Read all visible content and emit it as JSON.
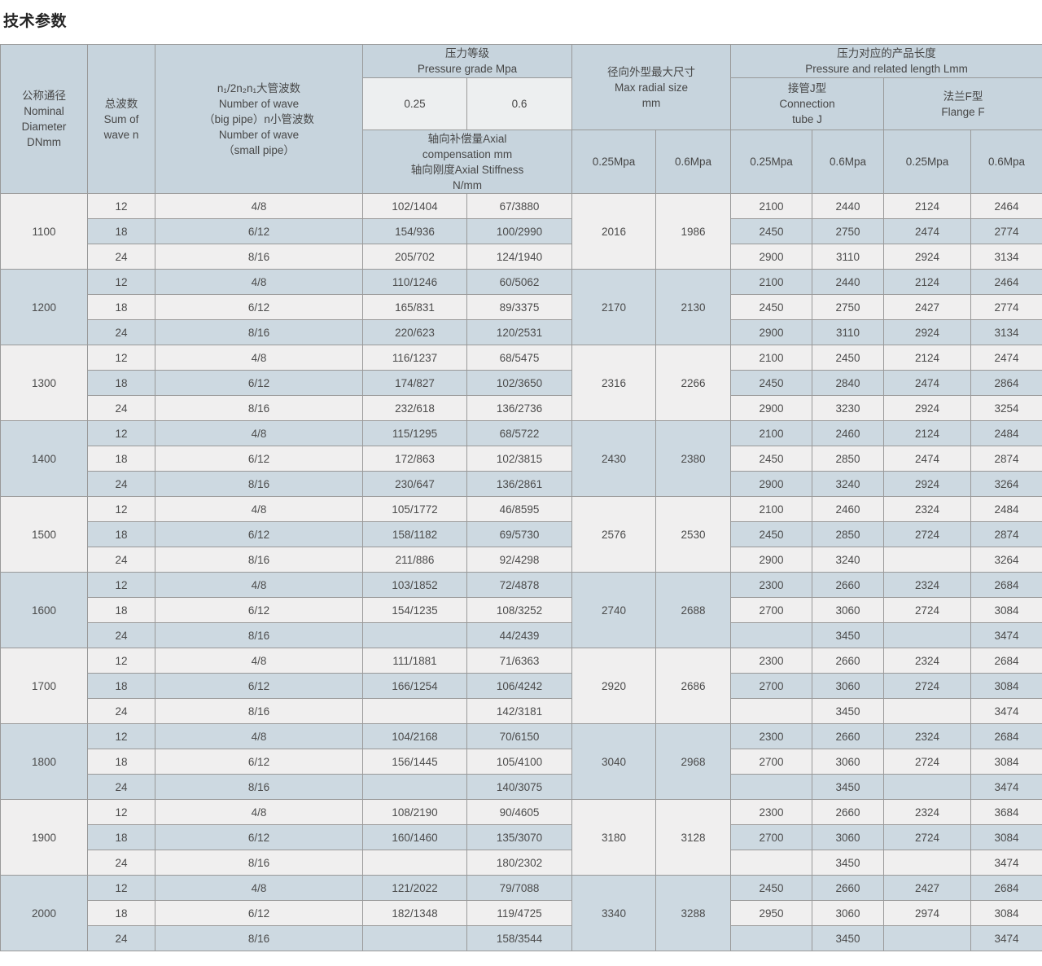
{
  "title": "技术参数",
  "colors": {
    "header_bg": "#c7d4dd",
    "header_sub_light_bg": "#edeff0",
    "row_light_bg": "#f0efef",
    "row_blue_bg": "#cdd9e1",
    "border": "#999999",
    "text": "#4c4c4c"
  },
  "table": {
    "header": {
      "nominal_diameter": "公称通径\nNominal\nDiameter\nDNmm",
      "wave_sum": "总波数\nSum of\nwave n",
      "wave_number": "n₁/2n₂n₁大管波数\nNumber of wave\n（big pipe）n小管波数\nNumber of wave\n（small pipe）",
      "pressure_grade": "压力等级\nPressure grade Mpa",
      "pressure_025": "0.25",
      "pressure_06": "0.6",
      "axial": "轴向补偿量Axial\ncompensation mm\n轴向刚度Axial Stiffness\nN/mm",
      "max_radial": "径向外型最大尺寸\nMax radial size\nmm",
      "pressure_length": "压力对应的产品长度\nPressure and related length Lmm",
      "tube_j": "接管J型\nConnection\ntube J",
      "flange_f": "法兰F型\nFlange F",
      "mpa_sub": [
        "0.25Mpa",
        "0.6Mpa",
        "0.25Mpa",
        "0.6Mpa",
        "0.25Mpa",
        "0.6Mpa"
      ]
    },
    "groups": [
      {
        "dn": "1100",
        "radial_025": "2016",
        "radial_06": "1986",
        "rows": [
          {
            "n": "12",
            "wave": "4/8",
            "axial_025": "102/1404",
            "axial_06": "67/3880",
            "j_025": "2100",
            "j_06": "2440",
            "f_025": "2124",
            "f_06": "2464"
          },
          {
            "n": "18",
            "wave": "6/12",
            "axial_025": "154/936",
            "axial_06": "100/2990",
            "j_025": "2450",
            "j_06": "2750",
            "f_025": "2474",
            "f_06": "2774"
          },
          {
            "n": "24",
            "wave": "8/16",
            "axial_025": "205/702",
            "axial_06": "124/1940",
            "j_025": "2900",
            "j_06": "3110",
            "f_025": "2924",
            "f_06": "3134"
          }
        ]
      },
      {
        "dn": "1200",
        "radial_025": "2170",
        "radial_06": "2130",
        "rows": [
          {
            "n": "12",
            "wave": "4/8",
            "axial_025": "110/1246",
            "axial_06": "60/5062",
            "j_025": "2100",
            "j_06": "2440",
            "f_025": "2124",
            "f_06": "2464"
          },
          {
            "n": "18",
            "wave": "6/12",
            "axial_025": "165/831",
            "axial_06": "89/3375",
            "j_025": "2450",
            "j_06": "2750",
            "f_025": "2427",
            "f_06": "2774"
          },
          {
            "n": "24",
            "wave": "8/16",
            "axial_025": "220/623",
            "axial_06": "120/2531",
            "j_025": "2900",
            "j_06": "3110",
            "f_025": "2924",
            "f_06": "3134"
          }
        ]
      },
      {
        "dn": "1300",
        "radial_025": "2316",
        "radial_06": "2266",
        "rows": [
          {
            "n": "12",
            "wave": "4/8",
            "axial_025": "116/1237",
            "axial_06": "68/5475",
            "j_025": "2100",
            "j_06": "2450",
            "f_025": "2124",
            "f_06": "2474"
          },
          {
            "n": "18",
            "wave": "6/12",
            "axial_025": "174/827",
            "axial_06": "102/3650",
            "j_025": "2450",
            "j_06": "2840",
            "f_025": "2474",
            "f_06": "2864"
          },
          {
            "n": "24",
            "wave": "8/16",
            "axial_025": "232/618",
            "axial_06": "136/2736",
            "j_025": "2900",
            "j_06": "3230",
            "f_025": "2924",
            "f_06": "3254"
          }
        ]
      },
      {
        "dn": "1400",
        "radial_025": "2430",
        "radial_06": "2380",
        "rows": [
          {
            "n": "12",
            "wave": "4/8",
            "axial_025": "115/1295",
            "axial_06": "68/5722",
            "j_025": "2100",
            "j_06": "2460",
            "f_025": "2124",
            "f_06": "2484"
          },
          {
            "n": "18",
            "wave": "6/12",
            "axial_025": "172/863",
            "axial_06": "102/3815",
            "j_025": "2450",
            "j_06": "2850",
            "f_025": "2474",
            "f_06": "2874"
          },
          {
            "n": "24",
            "wave": "8/16",
            "axial_025": "230/647",
            "axial_06": "136/2861",
            "j_025": "2900",
            "j_06": "3240",
            "f_025": "2924",
            "f_06": "3264"
          }
        ]
      },
      {
        "dn": "1500",
        "radial_025": "2576",
        "radial_06": "2530",
        "rows": [
          {
            "n": "12",
            "wave": "4/8",
            "axial_025": "105/1772",
            "axial_06": "46/8595",
            "j_025": "2100",
            "j_06": "2460",
            "f_025": "2324",
            "f_06": "2484"
          },
          {
            "n": "18",
            "wave": "6/12",
            "axial_025": "158/1182",
            "axial_06": "69/5730",
            "j_025": "2450",
            "j_06": "2850",
            "f_025": "2724",
            "f_06": "2874"
          },
          {
            "n": "24",
            "wave": "8/16",
            "axial_025": "211/886",
            "axial_06": "92/4298",
            "j_025": "2900",
            "j_06": "3240",
            "f_025": "",
            "f_06": "3264"
          }
        ]
      },
      {
        "dn": "1600",
        "radial_025": "2740",
        "radial_06": "2688",
        "rows": [
          {
            "n": "12",
            "wave": "4/8",
            "axial_025": "103/1852",
            "axial_06": "72/4878",
            "j_025": "2300",
            "j_06": "2660",
            "f_025": "2324",
            "f_06": "2684"
          },
          {
            "n": "18",
            "wave": "6/12",
            "axial_025": "154/1235",
            "axial_06": "108/3252",
            "j_025": "2700",
            "j_06": "3060",
            "f_025": "2724",
            "f_06": "3084"
          },
          {
            "n": "24",
            "wave": "8/16",
            "axial_025": "",
            "axial_06": "44/2439",
            "j_025": "",
            "j_06": "3450",
            "f_025": "",
            "f_06": "3474"
          }
        ]
      },
      {
        "dn": "1700",
        "radial_025": "2920",
        "radial_06": "2686",
        "rows": [
          {
            "n": "12",
            "wave": "4/8",
            "axial_025": "111/1881",
            "axial_06": "71/6363",
            "j_025": "2300",
            "j_06": "2660",
            "f_025": "2324",
            "f_06": "2684"
          },
          {
            "n": "18",
            "wave": "6/12",
            "axial_025": "166/1254",
            "axial_06": "106/4242",
            "j_025": "2700",
            "j_06": "3060",
            "f_025": "2724",
            "f_06": "3084"
          },
          {
            "n": "24",
            "wave": "8/16",
            "axial_025": "",
            "axial_06": "142/3181",
            "j_025": "",
            "j_06": "3450",
            "f_025": "",
            "f_06": "3474"
          }
        ]
      },
      {
        "dn": "1800",
        "radial_025": "3040",
        "radial_06": "2968",
        "rows": [
          {
            "n": "12",
            "wave": "4/8",
            "axial_025": "104/2168",
            "axial_06": "70/6150",
            "j_025": "2300",
            "j_06": "2660",
            "f_025": "2324",
            "f_06": "2684"
          },
          {
            "n": "18",
            "wave": "6/12",
            "axial_025": "156/1445",
            "axial_06": "105/4100",
            "j_025": "2700",
            "j_06": "3060",
            "f_025": "2724",
            "f_06": "3084"
          },
          {
            "n": "24",
            "wave": "8/16",
            "axial_025": "",
            "axial_06": "140/3075",
            "j_025": "",
            "j_06": "3450",
            "f_025": "",
            "f_06": "3474"
          }
        ]
      },
      {
        "dn": "1900",
        "radial_025": "3180",
        "radial_06": "3128",
        "rows": [
          {
            "n": "12",
            "wave": "4/8",
            "axial_025": "108/2190",
            "axial_06": "90/4605",
            "j_025": "2300",
            "j_06": "2660",
            "f_025": "2324",
            "f_06": "3684"
          },
          {
            "n": "18",
            "wave": "6/12",
            "axial_025": "160/1460",
            "axial_06": "135/3070",
            "j_025": "2700",
            "j_06": "3060",
            "f_025": "2724",
            "f_06": "3084"
          },
          {
            "n": "24",
            "wave": "8/16",
            "axial_025": "",
            "axial_06": "180/2302",
            "j_025": "",
            "j_06": "3450",
            "f_025": "",
            "f_06": "3474"
          }
        ]
      },
      {
        "dn": "2000",
        "radial_025": "3340",
        "radial_06": "3288",
        "rows": [
          {
            "n": "12",
            "wave": "4/8",
            "axial_025": "121/2022",
            "axial_06": "79/7088",
            "j_025": "2450",
            "j_06": "2660",
            "f_025": "2427",
            "f_06": "2684"
          },
          {
            "n": "18",
            "wave": "6/12",
            "axial_025": "182/1348",
            "axial_06": "119/4725",
            "j_025": "2950",
            "j_06": "3060",
            "f_025": "2974",
            "f_06": "3084"
          },
          {
            "n": "24",
            "wave": "8/16",
            "axial_025": "",
            "axial_06": "158/3544",
            "j_025": "",
            "j_06": "3450",
            "f_025": "",
            "f_06": "3474"
          }
        ]
      }
    ]
  }
}
